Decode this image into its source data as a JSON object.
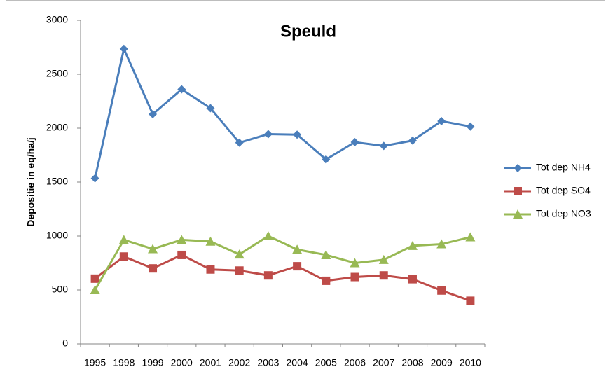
{
  "chart_data": {
    "type": "line",
    "title": "Speuld",
    "y_label": "Depositie in eq/ha/j",
    "categories": [
      "1995",
      "1998",
      "1999",
      "2000",
      "2001",
      "2002",
      "2003",
      "2004",
      "2005",
      "2006",
      "2007",
      "2008",
      "2009",
      "2010"
    ],
    "series": [
      {
        "name": "Tot dep NH4",
        "color": "#4a7ebb",
        "marker": "diamond",
        "values": [
          1535,
          2735,
          2130,
          2360,
          2185,
          1865,
          1945,
          1940,
          1710,
          1870,
          1835,
          1885,
          2065,
          2015
        ]
      },
      {
        "name": "Tot dep SO4",
        "color": "#be4b48",
        "marker": "square",
        "values": [
          605,
          810,
          700,
          825,
          690,
          680,
          635,
          720,
          585,
          620,
          635,
          600,
          495,
          400
        ]
      },
      {
        "name": "Tot dep NO3",
        "color": "#98b954",
        "marker": "triangle",
        "values": [
          500,
          965,
          880,
          965,
          950,
          830,
          1000,
          875,
          825,
          750,
          780,
          910,
          925,
          990
        ]
      }
    ],
    "ylim": [
      0,
      3000
    ],
    "yticks": [
      0,
      500,
      1000,
      1500,
      2000,
      2500,
      3000
    ],
    "grid": false,
    "legend": "right"
  }
}
